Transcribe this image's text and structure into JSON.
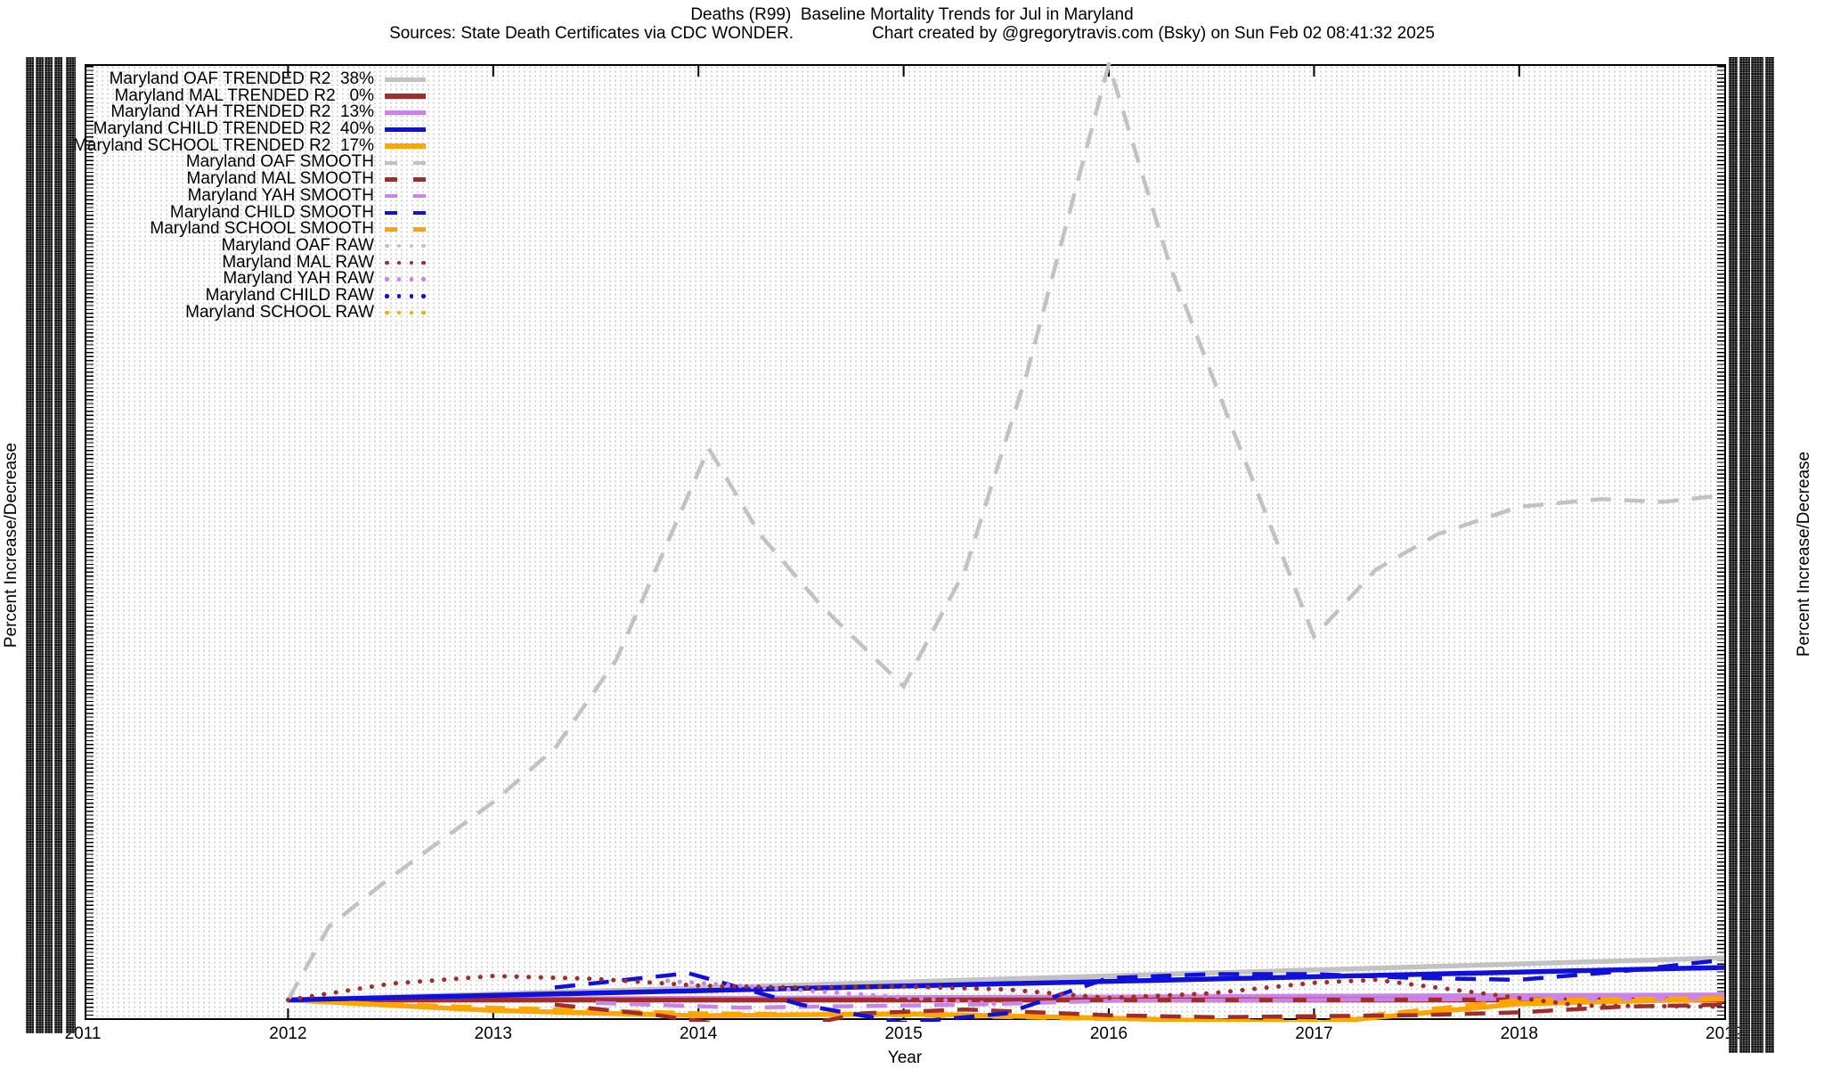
{
  "title": {
    "line1": "Deaths (R99)  Baseline Mortality Trends for Jul in Maryland",
    "sources": "Sources: State Death Certificates via CDC WONDER.",
    "credit": "Chart created by @gregorytravis.com (Bsky) on Sun Feb 02 08:41:32 2025"
  },
  "axes": {
    "x": {
      "label": "Year",
      "ticks": [
        "2011",
        "2012",
        "2013",
        "2014",
        "2015",
        "2016",
        "2017",
        "2018",
        "2019"
      ]
    },
    "y_left": {
      "label": "Percent Increase/Decrease",
      "tick_labels": "illegible (densely overlapping text columns)"
    },
    "y_right": {
      "label": "Percent Increase/Decrease",
      "tick_labels": "illegible (densely overlapping text columns)"
    }
  },
  "colors": {
    "oaf": "#c2c2c2",
    "mal": "#a02c2c",
    "yah": "#c884e8",
    "child": "#1010dd",
    "school": "#ffa500",
    "grid_dots": "#d2d2d2",
    "axis": "#000000",
    "background": "#ffffff"
  },
  "chart_data": {
    "type": "line",
    "x_range": [
      2011,
      2019
    ],
    "grid": "fine dotted grid over entire plot",
    "legend_position": "top-left inside plot, text right-aligned",
    "y_note": "Y tick labels are illegible (overplotted). Values below are normalized: 0 = x-axis baseline, 100 = top plot border.",
    "series": [
      {
        "key": "oaf-trended",
        "legend_label": "Maryland OAF TRENDED R2  38%",
        "r2": "38%",
        "group": "TRENDED",
        "color": "#c2c2c2",
        "style": "solid",
        "width": 5.5,
        "points": [
          [
            2012,
            2.1
          ],
          [
            2019,
            6.5
          ]
        ]
      },
      {
        "key": "mal-trended",
        "legend_label": "Maryland MAL TRENDED R2   0%",
        "r2": "0%",
        "group": "TRENDED",
        "color": "#a02c2c",
        "style": "solid",
        "width": 5.5,
        "points": [
          [
            2012,
            2.1
          ],
          [
            2019,
            2.1
          ]
        ]
      },
      {
        "key": "yah-trended",
        "legend_label": "Maryland YAH TRENDED R2  13%",
        "r2": "13%",
        "group": "TRENDED",
        "color": "#c884e8",
        "style": "solid",
        "width": 6,
        "points": [
          [
            2012,
            2.1
          ],
          [
            2019,
            2.6
          ]
        ]
      },
      {
        "key": "child-trended",
        "legend_label": "Maryland CHILD TRENDED R2  40%",
        "r2": "40%",
        "group": "TRENDED",
        "color": "#1010dd",
        "style": "solid",
        "width": 5.5,
        "points": [
          [
            2012,
            2.1
          ],
          [
            2019,
            5.5
          ]
        ]
      },
      {
        "key": "school-trended",
        "legend_label": "Maryland SCHOOL TRENDED R2  17%",
        "r2": "17%",
        "group": "TRENDED",
        "color": "#ffa500",
        "style": "solid",
        "width": 5.5,
        "points": [
          [
            2012,
            2.1
          ],
          [
            2013,
            1.0
          ],
          [
            2014,
            0.45
          ],
          [
            2015,
            0.65
          ],
          [
            2016,
            0.2
          ],
          [
            2017,
            -0.35
          ],
          [
            2018,
            1.7
          ],
          [
            2019,
            2.2
          ]
        ]
      },
      {
        "key": "oaf-smooth",
        "legend_label": "Maryland OAF SMOOTH",
        "group": "SMOOTH",
        "color": "#c2c2c2",
        "style": "dashed",
        "width": 4.5,
        "points": [
          [
            2012,
            2.1
          ],
          [
            2012.2,
            9.8
          ],
          [
            2012.5,
            14.9
          ],
          [
            2013,
            22.8
          ],
          [
            2013.3,
            28.4
          ],
          [
            2013.6,
            37.7
          ],
          [
            2014.05,
            59.8
          ],
          [
            2014.3,
            50.8
          ],
          [
            2014.6,
            43.3
          ],
          [
            2015,
            34.9
          ],
          [
            2015.3,
            47.1
          ],
          [
            2015.6,
            67.6
          ],
          [
            2016,
            100
          ],
          [
            2016.3,
            78.8
          ],
          [
            2016.6,
            62
          ],
          [
            2017,
            40.1
          ],
          [
            2017.3,
            47.1
          ],
          [
            2017.6,
            50.8
          ],
          [
            2018,
            53.7
          ],
          [
            2018.4,
            54.5
          ],
          [
            2018.7,
            54.2
          ],
          [
            2019,
            54.9
          ]
        ]
      },
      {
        "key": "mal-smooth",
        "legend_label": "Maryland MAL SMOOTH",
        "group": "SMOOTH",
        "color": "#a02c2c",
        "style": "dashed",
        "width": 4.5,
        "points": [
          [
            2013.3,
            1.6
          ],
          [
            2013.8,
            0.5
          ],
          [
            2014.35,
            -1.2
          ],
          [
            2014.8,
            0.7
          ],
          [
            2015.3,
            1.1
          ],
          [
            2016,
            0.5
          ],
          [
            2016.5,
            0.3
          ],
          [
            2017,
            0.4
          ],
          [
            2017.5,
            0.5
          ],
          [
            2018,
            0.8
          ],
          [
            2018.5,
            1.4
          ],
          [
            2019,
            1.6
          ]
        ]
      },
      {
        "key": "yah-smooth",
        "legend_label": "Maryland YAH SMOOTH",
        "group": "SMOOTH",
        "color": "#c884e8",
        "style": "dashed",
        "width": 4.5,
        "points": [
          [
            2013.5,
            1.8
          ],
          [
            2014.2,
            1.3
          ],
          [
            2015.3,
            1.6
          ],
          [
            2016,
            2.0
          ],
          [
            2017,
            2.1
          ],
          [
            2018,
            2.2
          ],
          [
            2019,
            2.3
          ]
        ]
      },
      {
        "key": "child-smooth",
        "legend_label": "Maryland CHILD SMOOTH",
        "group": "SMOOTH",
        "color": "#1010dd",
        "style": "dashed",
        "width": 4.5,
        "points": [
          [
            2013.3,
            3.4
          ],
          [
            2013.95,
            4.9
          ],
          [
            2014.5,
            1.6
          ],
          [
            2015,
            -0.3
          ],
          [
            2015.5,
            0.7
          ],
          [
            2016,
            4.4
          ],
          [
            2016.5,
            4.8
          ],
          [
            2017,
            4.8
          ],
          [
            2017.5,
            4.4
          ],
          [
            2018,
            4.2
          ],
          [
            2018.5,
            5.1
          ],
          [
            2019,
            6.3
          ]
        ]
      },
      {
        "key": "school-smooth",
        "legend_label": "Maryland SCHOOL SMOOTH",
        "group": "SMOOTH",
        "color": "#ffa500",
        "style": "dashed",
        "width": 4.5,
        "points": [
          [
            2012.3,
            1.8
          ],
          [
            2013,
            1.3
          ],
          [
            2014,
            0.7
          ],
          [
            2015,
            0.5
          ],
          [
            2016,
            0.1
          ],
          [
            2017,
            -0.1
          ],
          [
            2018,
            2.1
          ],
          [
            2019,
            2.3
          ]
        ]
      },
      {
        "key": "oaf-raw",
        "legend_label": "Maryland OAF RAW",
        "group": "RAW",
        "color": "#c2c2c2",
        "style": "dotted",
        "width": 5,
        "points": []
      },
      {
        "key": "mal-raw",
        "legend_label": "Maryland MAL RAW",
        "group": "RAW",
        "color": "#a02c2c",
        "style": "dotted",
        "width": 5,
        "points": [
          [
            2012,
            2.1
          ],
          [
            2012.5,
            3.8
          ],
          [
            2013,
            4.6
          ],
          [
            2013.5,
            4.3
          ],
          [
            2014,
            3.6
          ],
          [
            2014.5,
            3.4
          ],
          [
            2015,
            3.5
          ],
          [
            2015.5,
            3.2
          ],
          [
            2016,
            2.3
          ],
          [
            2016.5,
            2.8
          ],
          [
            2017,
            3.9
          ],
          [
            2017.3,
            4.2
          ],
          [
            2018,
            2.3
          ],
          [
            2018.3,
            1.5
          ],
          [
            2019,
            1.4
          ]
        ]
      },
      {
        "key": "yah-raw",
        "legend_label": "Maryland YAH RAW",
        "group": "RAW",
        "color": "#c884e8",
        "style": "dotted",
        "width": 5,
        "points": [
          [
            2013.85,
            4.1
          ],
          [
            2014.05,
            3.8
          ],
          [
            2015.45,
            1.7
          ]
        ]
      },
      {
        "key": "child-raw",
        "legend_label": "Maryland CHILD RAW",
        "group": "RAW",
        "color": "#1010dd",
        "style": "dotted",
        "width": 5,
        "points": []
      },
      {
        "key": "school-raw",
        "legend_label": "Maryland SCHOOL RAW",
        "group": "RAW",
        "color": "#ffa500",
        "style": "dotted",
        "width": 5,
        "points": []
      }
    ]
  }
}
